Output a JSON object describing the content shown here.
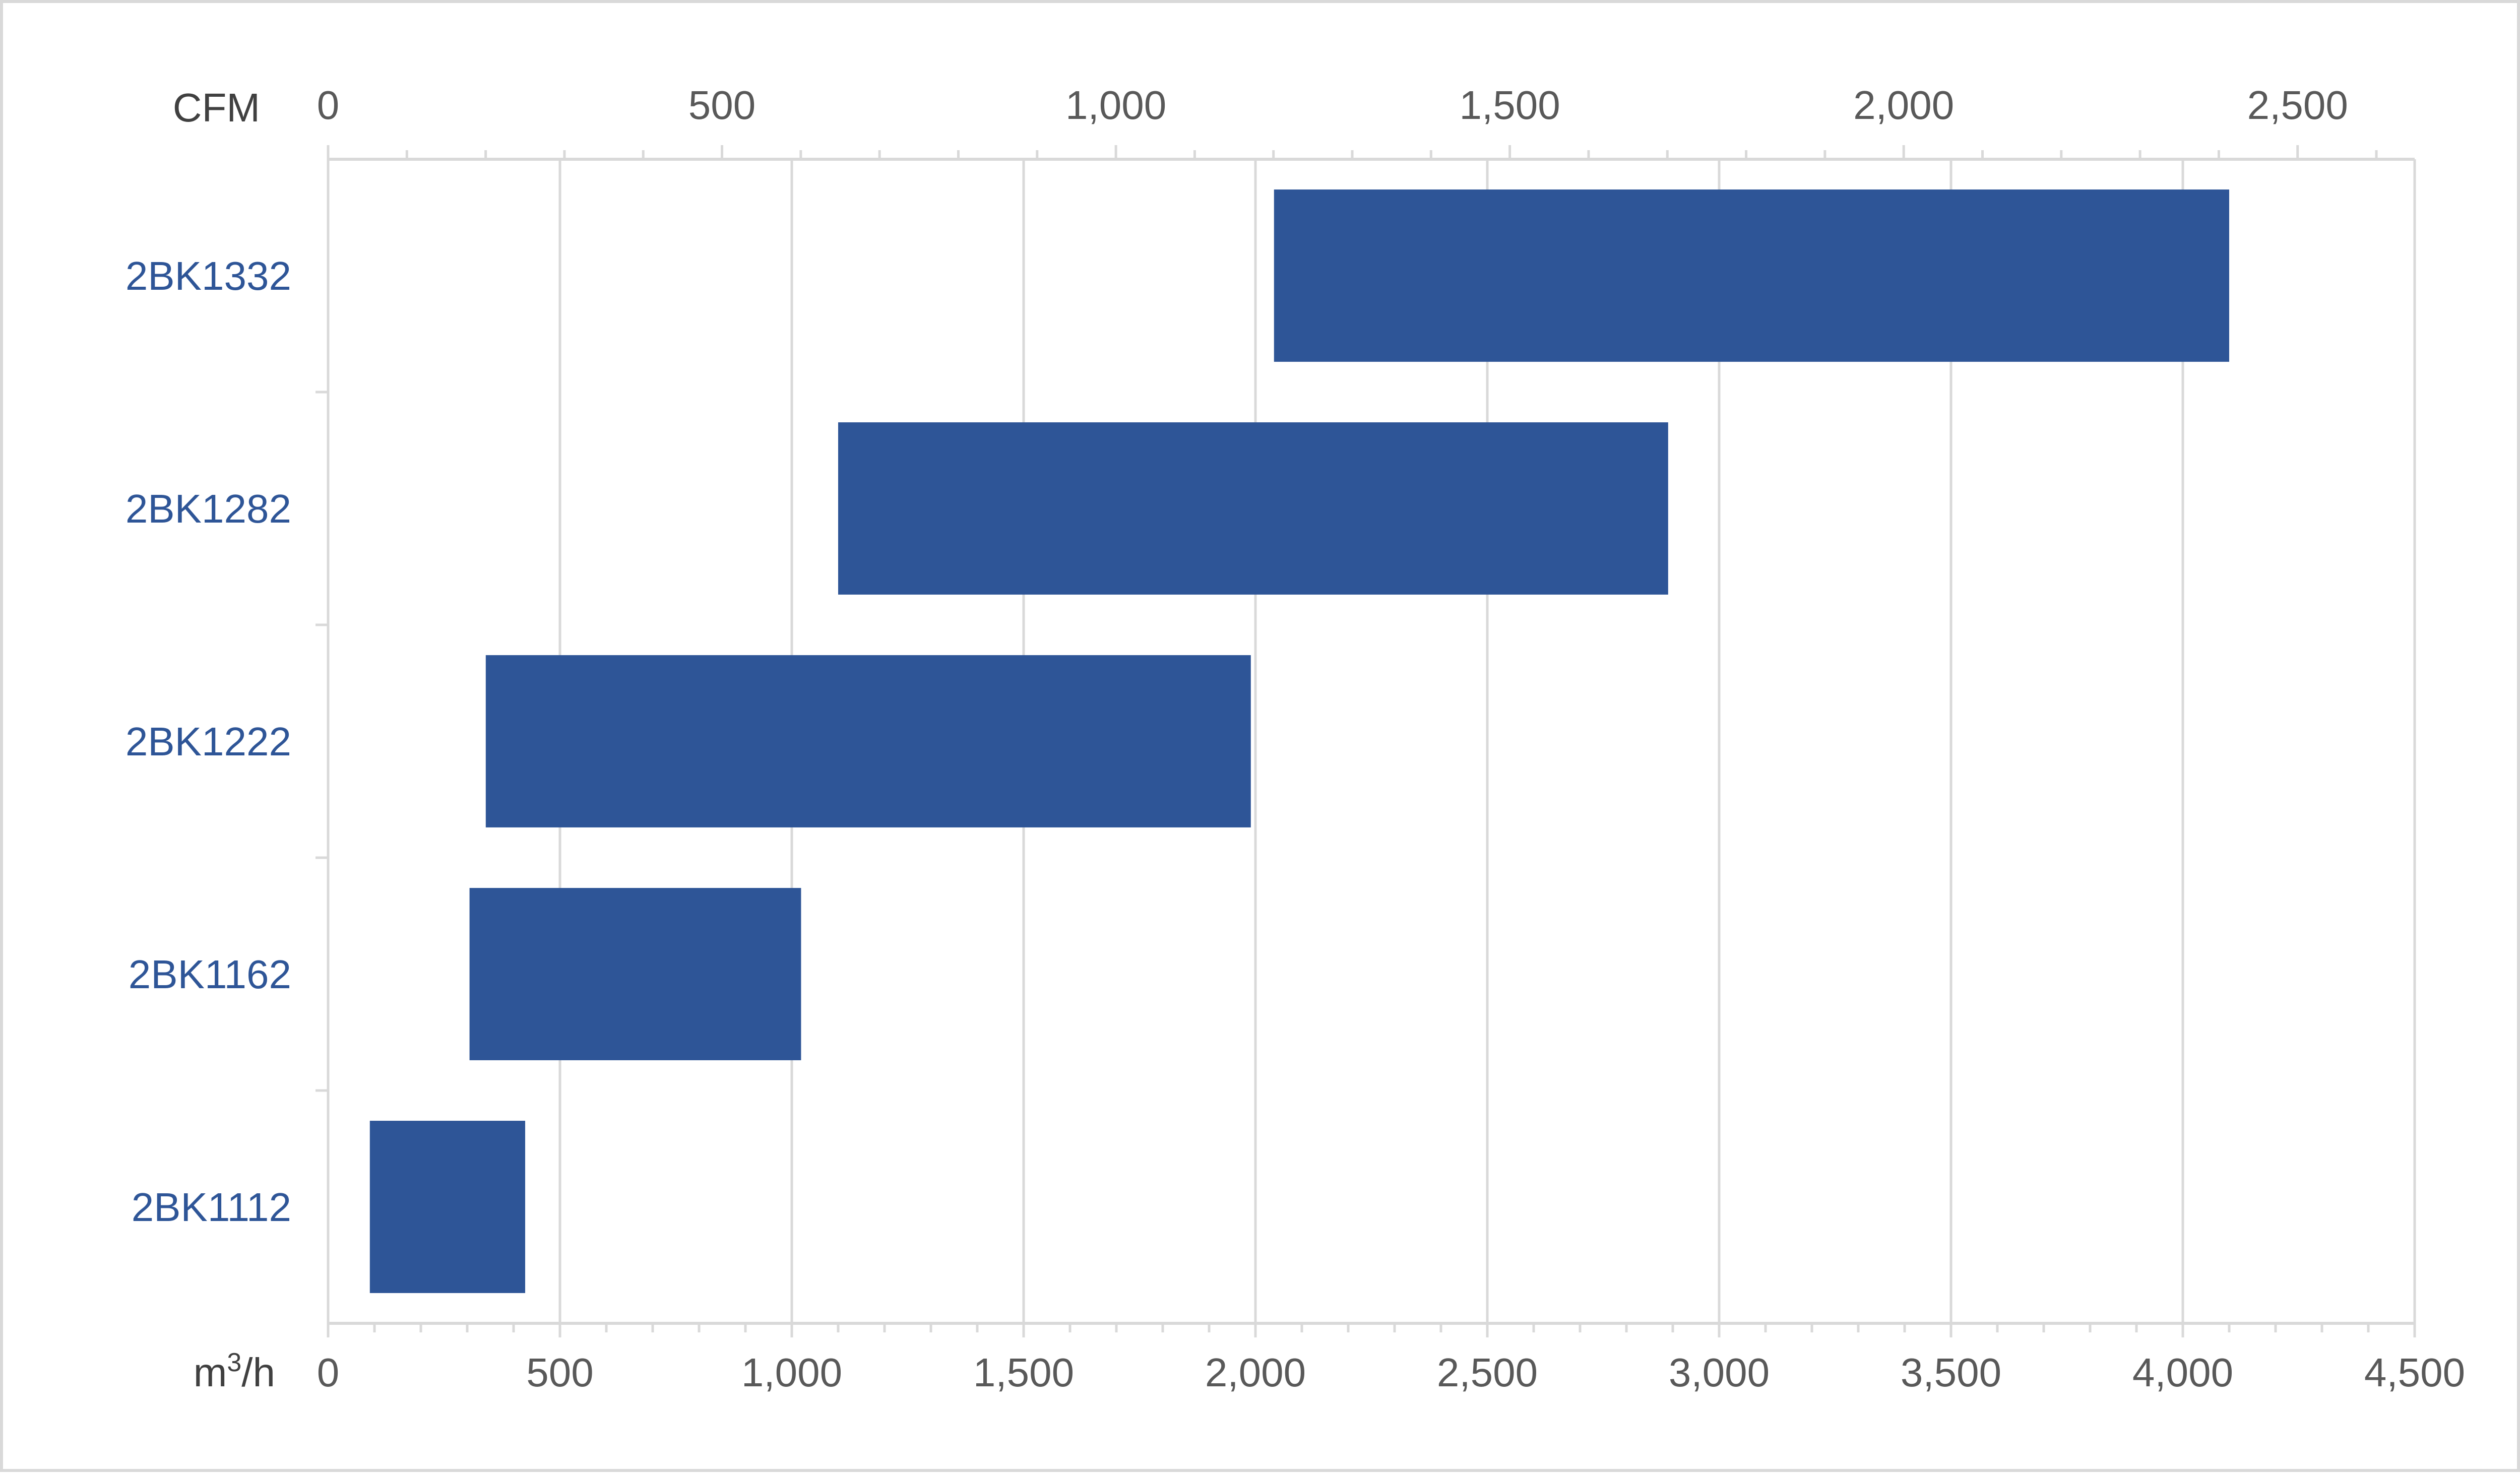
{
  "chart_data": {
    "type": "bar",
    "orientation": "horizontal-range",
    "categories": [
      "2BK1332",
      "2BK1282",
      "2BK1222",
      "2BK1162",
      "2BK1112"
    ],
    "series": [
      {
        "ranges": [
          [
            2040,
            4100
          ],
          [
            1100,
            2890
          ],
          [
            340,
            1990
          ],
          [
            305,
            1020
          ],
          [
            90,
            425
          ]
        ]
      }
    ],
    "colors": {
      "bar": "#2e5597",
      "category_label": "#2e5597",
      "grid": "#d9d9d9"
    },
    "x_bottom": {
      "unit_label_base": "m",
      "unit_label_sup": "3",
      "unit_label_tail": "/h",
      "range": [
        0,
        4500
      ],
      "ticks": [
        0,
        500,
        1000,
        1500,
        2000,
        2500,
        3000,
        3500,
        4000,
        4500
      ],
      "tick_labels": [
        "0",
        "500",
        "1,000",
        "1,500",
        "2,000",
        "2,500",
        "3,000",
        "3,500",
        "4,000",
        "4,500"
      ]
    },
    "x_top": {
      "unit_label": "CFM",
      "range": [
        0,
        2648.6
      ],
      "ticks": [
        0,
        500,
        1000,
        1500,
        2000,
        2500
      ],
      "tick_labels": [
        "0",
        "500",
        "1,000",
        "1,500",
        "2,000",
        "2,500"
      ]
    },
    "grid": true,
    "legend": "none"
  }
}
